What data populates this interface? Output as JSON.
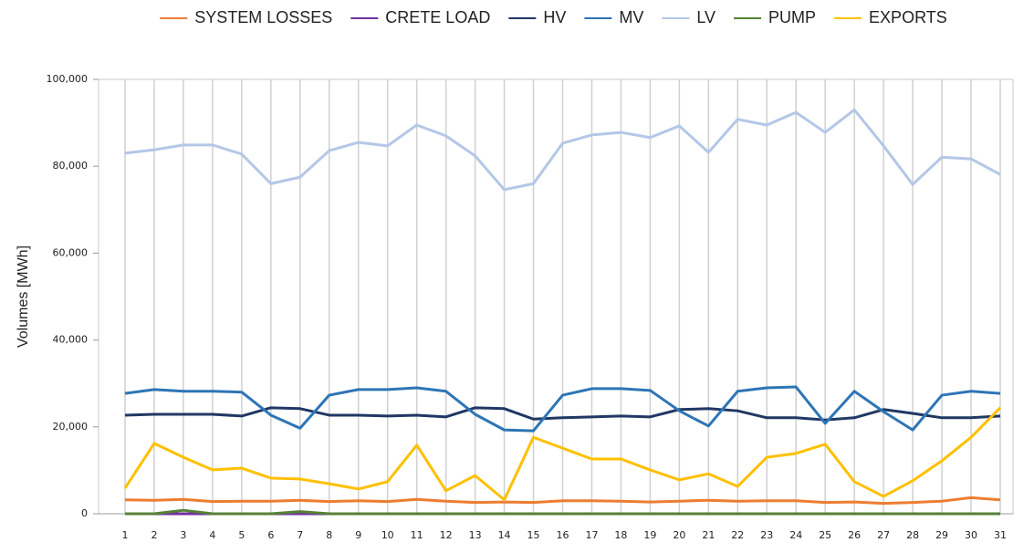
{
  "chart_data": {
    "type": "line",
    "y_label": "Volumes [MWh]",
    "categories": [
      "1",
      "2",
      "3",
      "4",
      "5",
      "6",
      "7",
      "8",
      "9",
      "10",
      "11",
      "12",
      "13",
      "14",
      "15",
      "16",
      "17",
      "18",
      "19",
      "20",
      "21",
      "22",
      "23",
      "24",
      "25",
      "26",
      "27",
      "28",
      "29",
      "30",
      "31"
    ],
    "ylim": [
      0,
      100000
    ],
    "yticks": [
      0,
      {
        "value": 20000,
        "label": "20,000"
      },
      {
        "value": 40000,
        "label": "40,000"
      },
      {
        "value": 60000,
        "label": "60,000"
      },
      {
        "value": 80000,
        "label": "80,000"
      },
      {
        "value": 100000,
        "label": "100,000"
      }
    ],
    "grid": true,
    "legend": "top",
    "series": [
      {
        "name": "SYSTEM LOSSES",
        "color": "#ed7d31",
        "values": [
          3200,
          3100,
          3300,
          2800,
          2900,
          2900,
          3100,
          2800,
          3000,
          2800,
          3300,
          2900,
          2600,
          2700,
          2600,
          3000,
          3000,
          2900,
          2700,
          2900,
          3100,
          2900,
          3000,
          3000,
          2600,
          2700,
          2400,
          2600,
          2900,
          3700,
          3200
        ]
      },
      {
        "name": "CRETE LOAD",
        "color": "#7030a0",
        "values": [
          0,
          0,
          0,
          0,
          0,
          0,
          0,
          0,
          0,
          0,
          0,
          0,
          0,
          0,
          0,
          0,
          0,
          0,
          0,
          0,
          0,
          0,
          0,
          0,
          0,
          0,
          0,
          0,
          0,
          0,
          0
        ]
      },
      {
        "name": "HV",
        "color": "#203864",
        "values": [
          22700,
          22900,
          22900,
          22900,
          22500,
          24400,
          24200,
          22700,
          22700,
          22500,
          22700,
          22300,
          24400,
          24200,
          21800,
          22100,
          22300,
          22500,
          22300,
          24000,
          24200,
          23700,
          22100,
          22100,
          21600,
          22100,
          24000,
          23100,
          22100,
          22100,
          22500
        ]
      },
      {
        "name": "MV",
        "color": "#2e75b6",
        "values": [
          27700,
          28600,
          28200,
          28200,
          28000,
          22700,
          19700,
          27300,
          28600,
          28600,
          29000,
          28200,
          22900,
          19300,
          19100,
          27300,
          28800,
          28800,
          28400,
          23700,
          20200,
          28200,
          29000,
          29200,
          20800,
          28200,
          23500,
          19300,
          27300,
          28200,
          27700
        ]
      },
      {
        "name": "LV",
        "color": "#b4c7e7",
        "values": [
          83000,
          83800,
          84900,
          84900,
          82800,
          76000,
          77500,
          83600,
          85500,
          84700,
          89500,
          87000,
          82400,
          74600,
          76000,
          85300,
          87200,
          87800,
          86600,
          89300,
          83200,
          90800,
          89500,
          92400,
          87800,
          93000,
          84700,
          75800,
          82100,
          81700,
          78100
        ]
      },
      {
        "name": "PUMP",
        "color": "#548235",
        "values": [
          0,
          0,
          800,
          0,
          0,
          0,
          500,
          0,
          0,
          0,
          0,
          0,
          0,
          0,
          0,
          0,
          0,
          0,
          0,
          0,
          0,
          0,
          0,
          0,
          0,
          0,
          0,
          0,
          0,
          0,
          0
        ]
      },
      {
        "name": "EXPORTS",
        "color": "#ffc000",
        "values": [
          5900,
          16200,
          13000,
          10100,
          10500,
          8200,
          8000,
          6900,
          5700,
          7400,
          15800,
          5300,
          8800,
          3200,
          17600,
          15100,
          12600,
          12600,
          10100,
          7800,
          9200,
          6300,
          13000,
          13900,
          16000,
          7400,
          4000,
          7600,
          12200,
          17600,
          24400
        ]
      }
    ]
  }
}
